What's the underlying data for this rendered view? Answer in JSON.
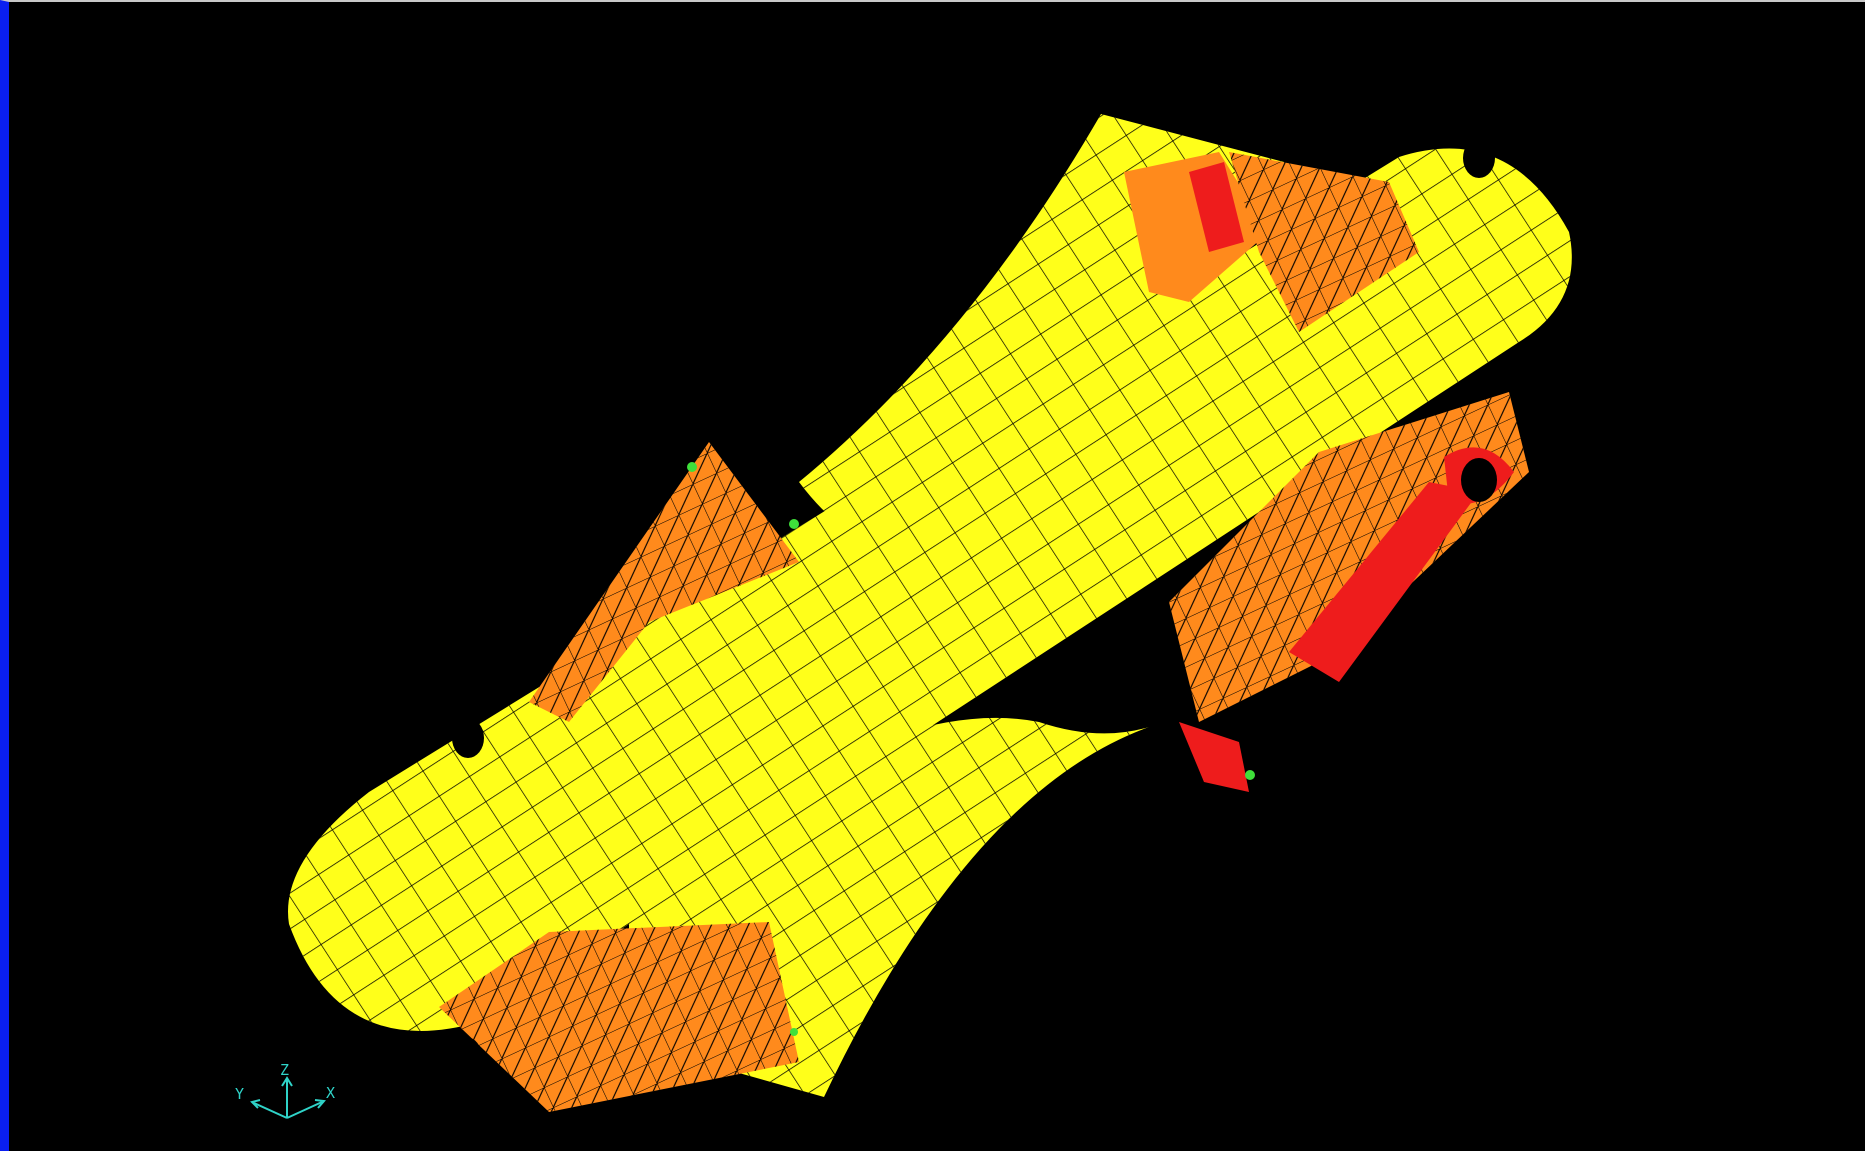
{
  "viewport": {
    "background": "#000000",
    "frame_color": "#0a1ff0"
  },
  "model": {
    "mesh_color": "#000000",
    "contour_colors": [
      "#ffff1a",
      "#ff8a1c",
      "#ee1c1c",
      "#e8e8e8",
      "#3fe03a"
    ]
  },
  "triad": {
    "color": "#2fd3c8",
    "z_label": "Z",
    "y_label": "Y",
    "x_label": "X"
  }
}
